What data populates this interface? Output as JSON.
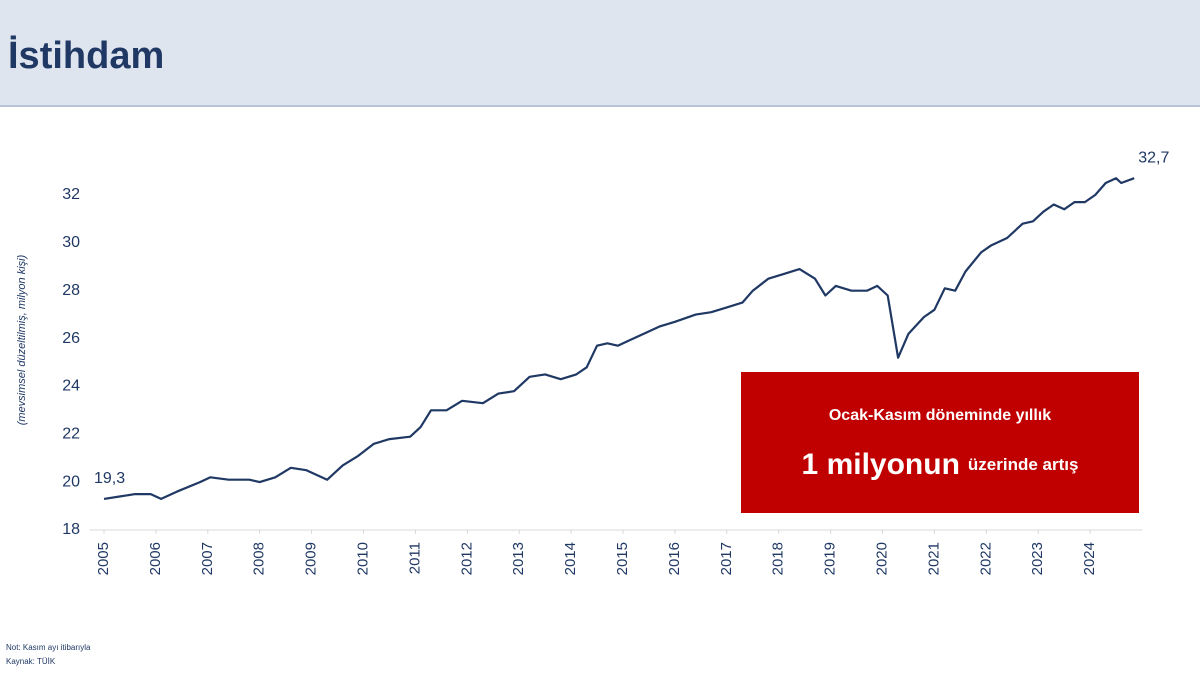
{
  "header": {
    "title": "İstihdam"
  },
  "chart_data": {
    "type": "line",
    "y_label": "(mevsimsel düzeltilmiş, milyon kişi)",
    "x": [
      2005.0,
      2005.3,
      2005.6,
      2005.9,
      2006.1,
      2006.4,
      2006.85,
      2007.05,
      2007.4,
      2007.8,
      2008.0,
      2008.3,
      2008.6,
      2008.9,
      2009.1,
      2009.3,
      2009.6,
      2009.9,
      2010.2,
      2010.5,
      2010.9,
      2011.1,
      2011.3,
      2011.6,
      2011.9,
      2012.3,
      2012.6,
      2012.9,
      2013.2,
      2013.5,
      2013.8,
      2014.1,
      2014.3,
      2014.5,
      2014.7,
      2014.9,
      2015.1,
      2015.3,
      2015.7,
      2016.0,
      2016.4,
      2016.7,
      2017.0,
      2017.3,
      2017.5,
      2017.8,
      2018.1,
      2018.4,
      2018.7,
      2018.9,
      2019.1,
      2019.4,
      2019.7,
      2019.9,
      2020.1,
      2020.3,
      2020.5,
      2020.8,
      2021.0,
      2021.2,
      2021.4,
      2021.6,
      2021.9,
      2022.1,
      2022.4,
      2022.7,
      2022.9,
      2023.1,
      2023.3,
      2023.5,
      2023.7,
      2023.9,
      2024.1,
      2024.3,
      2024.5,
      2024.6,
      2024.85
    ],
    "values": [
      19.3,
      19.4,
      19.5,
      19.5,
      19.3,
      19.6,
      20.0,
      20.2,
      20.1,
      20.1,
      20.0,
      20.2,
      20.6,
      20.5,
      20.3,
      20.1,
      20.7,
      21.1,
      21.6,
      21.8,
      21.9,
      22.3,
      23.0,
      23.0,
      23.4,
      23.3,
      23.7,
      23.8,
      24.4,
      24.5,
      24.3,
      24.5,
      24.8,
      25.7,
      25.8,
      25.7,
      25.9,
      26.1,
      26.5,
      26.7,
      27.0,
      27.1,
      27.3,
      27.5,
      28.0,
      28.5,
      28.7,
      28.9,
      28.5,
      27.8,
      28.2,
      28.0,
      28.0,
      28.2,
      27.8,
      25.2,
      26.2,
      26.9,
      27.2,
      28.1,
      28.0,
      28.8,
      29.6,
      29.9,
      30.2,
      30.8,
      30.9,
      31.3,
      31.6,
      31.4,
      31.7,
      31.7,
      32.0,
      32.5,
      32.7,
      32.5,
      32.7
    ],
    "value_labels": [
      "19,3",
      null,
      null,
      null,
      null,
      null,
      null,
      null,
      null,
      null,
      null,
      null,
      null,
      null,
      null,
      null,
      null,
      null,
      null,
      null,
      null,
      null,
      null,
      null,
      null,
      null,
      null,
      null,
      null,
      null,
      null,
      null,
      null,
      null,
      null,
      null,
      null,
      null,
      null,
      null,
      null,
      null,
      null,
      null,
      null,
      null,
      null,
      null,
      null,
      null,
      null,
      null,
      null,
      null,
      null,
      null,
      null,
      null,
      null,
      null,
      null,
      null,
      null,
      null,
      null,
      null,
      null,
      null,
      null,
      null,
      null,
      null,
      null,
      null,
      null,
      null,
      "32,7"
    ],
    "color": "#1f3864",
    "xlim": [
      2005,
      2025
    ],
    "xticks": [
      2005,
      2006,
      2007,
      2008,
      2009,
      2010,
      2011,
      2012,
      2013,
      2014,
      2015,
      2016,
      2017,
      2018,
      2019,
      2020,
      2021,
      2022,
      2023,
      2024
    ],
    "ylim": [
      18,
      33
    ],
    "yticks": [
      18,
      20,
      22,
      24,
      26,
      28,
      30,
      32
    ],
    "grid": false,
    "callout": {
      "line1": "Ocak-Kasım döneminde yıllık",
      "big": "1 milyonun",
      "small": "üzerinde artış"
    }
  },
  "footer": {
    "note": "Not: Kasım ayı itibarıyla",
    "source": "Kaynak: TÜİK"
  }
}
